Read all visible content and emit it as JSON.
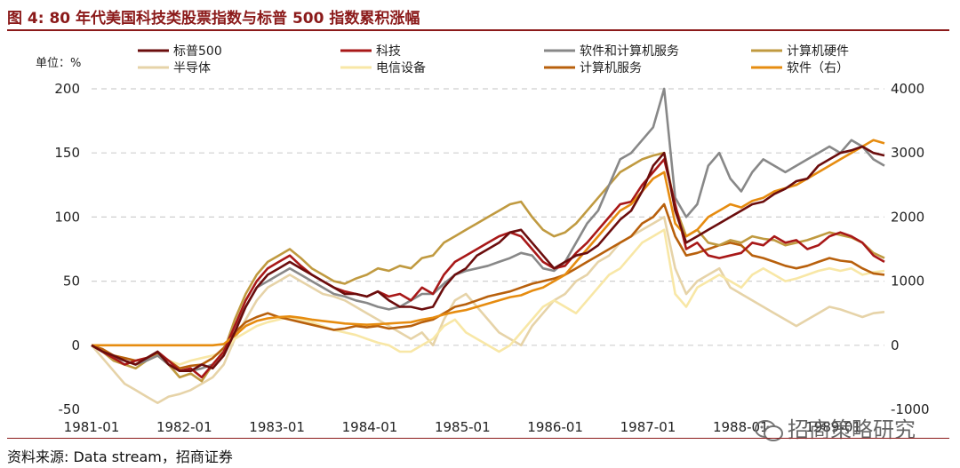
{
  "header": {
    "title": "图 4:  80 年代美国科技类股票指数与标普 500 指数累积涨幅"
  },
  "footer": {
    "source": "资料来源:  Data stream，招商证券",
    "watermark": "招商策略研究"
  },
  "chart_data": {
    "type": "line",
    "unit_label": "单位：%",
    "x_labels": [
      "1981-01",
      "1982-01",
      "1983-01",
      "1984-01",
      "1985-01",
      "1986-01",
      "1987-01",
      "1988-01",
      "1989-01"
    ],
    "left_axis": {
      "ticks": [
        200,
        150,
        100,
        50,
        0,
        -50
      ],
      "min": -50,
      "max": 200
    },
    "right_axis": {
      "ticks": [
        4000,
        3000,
        2000,
        1000,
        0,
        -1000
      ],
      "min": -1000,
      "max": 4000
    },
    "grid": "horizontal-dashed",
    "legend_position": "top",
    "series": [
      {
        "name": "标普500",
        "color": "#6b0d0d",
        "axis": "left",
        "values": [
          0,
          -5,
          -8,
          -12,
          -15,
          -10,
          -5,
          -15,
          -20,
          -20,
          -15,
          -18,
          -8,
          10,
          30,
          45,
          55,
          60,
          65,
          60,
          55,
          50,
          45,
          40,
          40,
          38,
          42,
          35,
          30,
          30,
          28,
          30,
          45,
          55,
          60,
          70,
          75,
          80,
          88,
          90,
          80,
          70,
          60,
          65,
          70,
          72,
          78,
          88,
          98,
          105,
          120,
          140,
          150,
          105,
          80,
          85,
          90,
          95,
          100,
          105,
          110,
          112,
          118,
          122,
          128,
          130,
          140,
          145,
          150,
          152,
          155,
          150,
          148
        ]
      },
      {
        "name": "科技",
        "color": "#a81818",
        "axis": "left",
        "values": [
          0,
          -5,
          -10,
          -15,
          -12,
          -10,
          -5,
          -12,
          -20,
          -18,
          -25,
          -15,
          -5,
          15,
          35,
          50,
          60,
          65,
          70,
          62,
          55,
          50,
          45,
          42,
          40,
          38,
          42,
          38,
          40,
          35,
          45,
          40,
          55,
          65,
          70,
          75,
          80,
          85,
          88,
          85,
          75,
          65,
          60,
          62,
          72,
          80,
          90,
          100,
          110,
          112,
          125,
          135,
          145,
          110,
          75,
          80,
          70,
          68,
          70,
          72,
          80,
          78,
          85,
          80,
          82,
          75,
          78,
          85,
          88,
          85,
          80,
          70,
          65
        ]
      },
      {
        "name": "软件和计算机服务",
        "color": "#888888",
        "axis": "left",
        "values": [
          0,
          -5,
          -10,
          -12,
          -15,
          -12,
          -8,
          -15,
          -20,
          -20,
          -18,
          -15,
          -5,
          15,
          30,
          45,
          50,
          55,
          60,
          55,
          50,
          45,
          40,
          38,
          35,
          33,
          30,
          28,
          30,
          35,
          40,
          40,
          48,
          55,
          58,
          60,
          62,
          65,
          68,
          72,
          70,
          60,
          58,
          65,
          80,
          95,
          105,
          125,
          145,
          150,
          160,
          170,
          200,
          115,
          100,
          110,
          140,
          150,
          130,
          120,
          135,
          145,
          140,
          135,
          140,
          145,
          150,
          155,
          150,
          160,
          155,
          145,
          140
        ]
      },
      {
        "name": "计算机硬件",
        "color": "#c09a40",
        "axis": "left",
        "values": [
          0,
          -5,
          -12,
          -15,
          -18,
          -12,
          -8,
          -15,
          -25,
          -22,
          -28,
          -15,
          -5,
          20,
          40,
          55,
          65,
          70,
          75,
          68,
          60,
          55,
          50,
          48,
          52,
          55,
          60,
          58,
          62,
          60,
          68,
          70,
          80,
          85,
          90,
          95,
          100,
          105,
          110,
          112,
          100,
          90,
          85,
          88,
          95,
          105,
          115,
          125,
          135,
          140,
          145,
          148,
          150,
          108,
          85,
          90,
          80,
          78,
          82,
          80,
          85,
          83,
          82,
          78,
          80,
          82,
          85,
          88,
          86,
          84,
          80,
          72,
          68
        ]
      },
      {
        "name": "半导体",
        "color": "#e6d3a8",
        "axis": "left",
        "values": [
          0,
          -10,
          -20,
          -30,
          -35,
          -40,
          -45,
          -40,
          -38,
          -35,
          -30,
          -25,
          -15,
          5,
          20,
          35,
          45,
          50,
          55,
          50,
          45,
          40,
          38,
          35,
          30,
          25,
          20,
          15,
          10,
          5,
          10,
          0,
          20,
          35,
          40,
          30,
          20,
          10,
          5,
          0,
          15,
          25,
          35,
          40,
          50,
          55,
          65,
          70,
          80,
          85,
          90,
          95,
          100,
          60,
          40,
          50,
          55,
          60,
          45,
          40,
          35,
          30,
          25,
          20,
          15,
          20,
          25,
          30,
          28,
          25,
          22,
          25,
          26
        ]
      },
      {
        "name": "电信设备",
        "color": "#f8e7a6",
        "axis": "left",
        "values": [
          0,
          -5,
          -8,
          -10,
          -12,
          -10,
          -8,
          -12,
          -15,
          -12,
          -10,
          -8,
          -5,
          5,
          10,
          15,
          18,
          20,
          22,
          20,
          18,
          15,
          12,
          10,
          8,
          5,
          2,
          0,
          -5,
          -5,
          0,
          5,
          15,
          20,
          10,
          5,
          0,
          -5,
          0,
          10,
          20,
          30,
          35,
          30,
          25,
          35,
          45,
          55,
          60,
          70,
          80,
          85,
          90,
          40,
          30,
          45,
          50,
          55,
          50,
          45,
          55,
          60,
          55,
          50,
          52,
          55,
          58,
          60,
          58,
          60,
          55,
          57,
          58
        ]
      },
      {
        "name": "计算机服务",
        "color": "#b8600c",
        "axis": "left",
        "values": [
          0,
          -3,
          -8,
          -10,
          -12,
          -10,
          -6,
          -12,
          -18,
          -16,
          -15,
          -10,
          -2,
          10,
          18,
          22,
          25,
          22,
          20,
          18,
          16,
          14,
          12,
          13,
          15,
          14,
          15,
          13,
          14,
          15,
          18,
          20,
          25,
          30,
          32,
          35,
          38,
          40,
          42,
          45,
          48,
          50,
          52,
          55,
          60,
          65,
          70,
          75,
          80,
          85,
          95,
          100,
          110,
          85,
          70,
          72,
          75,
          78,
          80,
          78,
          70,
          68,
          65,
          62,
          60,
          62,
          65,
          68,
          66,
          65,
          60,
          56,
          55
        ]
      },
      {
        "name": "软件（右）",
        "color": "#e68c10",
        "axis": "right",
        "values": [
          0,
          0,
          0,
          0,
          0,
          0,
          0,
          0,
          0,
          0,
          0,
          0,
          20,
          150,
          300,
          380,
          420,
          440,
          450,
          430,
          400,
          380,
          360,
          340,
          330,
          320,
          330,
          340,
          350,
          360,
          400,
          430,
          480,
          520,
          550,
          600,
          650,
          700,
          750,
          780,
          850,
          900,
          1000,
          1100,
          1300,
          1500,
          1700,
          1900,
          2100,
          2200,
          2400,
          2600,
          2700,
          1900,
          1700,
          1800,
          2000,
          2100,
          2200,
          2150,
          2250,
          2300,
          2400,
          2450,
          2500,
          2600,
          2700,
          2800,
          2900,
          3000,
          3100,
          3200,
          3150
        ]
      }
    ]
  }
}
